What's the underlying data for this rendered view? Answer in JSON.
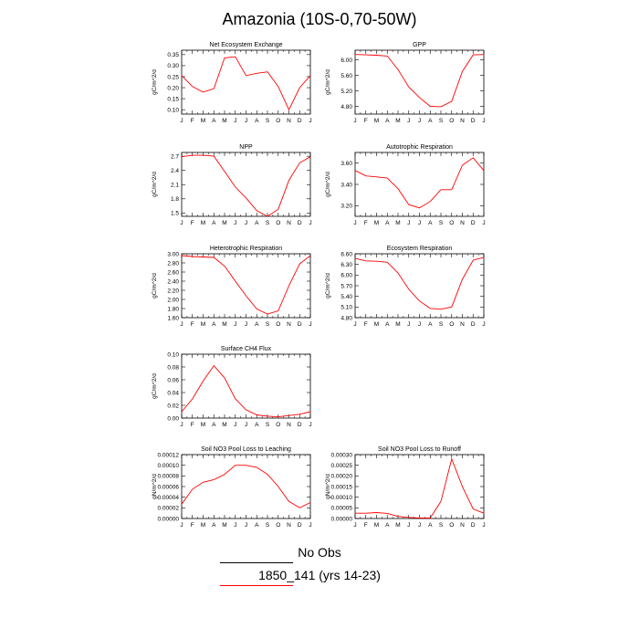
{
  "title": "Amazonia (10S-0,70-50W)",
  "footer": {
    "no_obs": "No Obs",
    "case_label": "1850_141 (yrs 14-23)",
    "line_color": "#ff0000"
  },
  "colors": {
    "series": "#ff0000",
    "axis": "#000000"
  },
  "chart_data": [
    {
      "type": "line",
      "title": "Net Ecosystem Exchange",
      "ylabel": "gC/m^2/d",
      "categories": [
        "J",
        "F",
        "M",
        "A",
        "M",
        "J",
        "J",
        "A",
        "S",
        "O",
        "N",
        "D",
        "J"
      ],
      "ylim": [
        0.08,
        0.37
      ],
      "yticks": [
        0.1,
        0.15,
        0.2,
        0.25,
        0.3,
        0.35
      ],
      "ytick_decimals": 2,
      "values": [
        0.255,
        0.205,
        0.18,
        0.195,
        0.335,
        0.34,
        0.255,
        0.265,
        0.272,
        0.205,
        0.1,
        0.2,
        0.255
      ]
    },
    {
      "type": "line",
      "title": "GPP",
      "ylabel": "gC/m^2/d",
      "categories": [
        "J",
        "F",
        "M",
        "A",
        "M",
        "J",
        "J",
        "A",
        "S",
        "O",
        "N",
        "D",
        "J"
      ],
      "ylim": [
        4.6,
        6.25
      ],
      "yticks": [
        4.8,
        5.2,
        5.6,
        6.0
      ],
      "ytick_decimals": 2,
      "values": [
        6.14,
        6.13,
        6.12,
        6.1,
        5.75,
        5.3,
        5.03,
        4.8,
        4.79,
        4.93,
        5.7,
        6.13,
        6.14
      ]
    },
    {
      "type": "line",
      "title": "NPP",
      "ylabel": "gC/m^2/d",
      "categories": [
        "J",
        "F",
        "M",
        "A",
        "M",
        "J",
        "J",
        "A",
        "S",
        "O",
        "N",
        "D",
        "J"
      ],
      "ylim": [
        1.43,
        2.78
      ],
      "yticks": [
        1.5,
        1.8,
        2.1,
        2.4,
        2.7
      ],
      "ytick_decimals": 1,
      "values": [
        2.69,
        2.72,
        2.72,
        2.7,
        2.38,
        2.05,
        1.82,
        1.55,
        1.43,
        1.58,
        2.19,
        2.56,
        2.69
      ]
    },
    {
      "type": "line",
      "title": "Autotrophic Respiration",
      "ylabel": "gC/m^2/d",
      "categories": [
        "J",
        "F",
        "M",
        "A",
        "M",
        "J",
        "J",
        "A",
        "S",
        "O",
        "N",
        "D",
        "J"
      ],
      "ylim": [
        3.1,
        3.7
      ],
      "yticks": [
        3.2,
        3.4,
        3.6
      ],
      "ytick_decimals": 2,
      "values": [
        3.53,
        3.48,
        3.47,
        3.46,
        3.36,
        3.21,
        3.18,
        3.24,
        3.35,
        3.35,
        3.58,
        3.65,
        3.53
      ]
    },
    {
      "type": "line",
      "title": "Heterotrophic Respiration",
      "ylabel": "gC/m^2/d",
      "categories": [
        "J",
        "F",
        "M",
        "A",
        "M",
        "J",
        "J",
        "A",
        "S",
        "O",
        "N",
        "D",
        "J"
      ],
      "ylim": [
        1.6,
        3.0
      ],
      "yticks": [
        1.6,
        1.8,
        2.0,
        2.2,
        2.4,
        2.6,
        2.8,
        3.0
      ],
      "ytick_decimals": 2,
      "values": [
        2.96,
        2.94,
        2.93,
        2.92,
        2.73,
        2.4,
        2.08,
        1.79,
        1.68,
        1.75,
        2.3,
        2.78,
        2.96
      ]
    },
    {
      "type": "line",
      "title": "Ecosystem Respiration",
      "ylabel": "gC/m^2/d",
      "categories": [
        "J",
        "F",
        "M",
        "A",
        "M",
        "J",
        "J",
        "A",
        "S",
        "O",
        "N",
        "D",
        "J"
      ],
      "ylim": [
        4.8,
        6.6
      ],
      "yticks": [
        4.8,
        5.1,
        5.4,
        5.7,
        6.0,
        6.3,
        6.6
      ],
      "ytick_decimals": 2,
      "values": [
        6.47,
        6.4,
        6.39,
        6.36,
        6.06,
        5.6,
        5.27,
        5.06,
        5.04,
        5.1,
        5.88,
        6.42,
        6.5
      ]
    },
    {
      "type": "line",
      "title": "Surface CH4 Flux",
      "ylabel": "gC/m^2/d",
      "categories": [
        "J",
        "F",
        "M",
        "A",
        "M",
        "J",
        "J",
        "A",
        "S",
        "O",
        "N",
        "D",
        "J"
      ],
      "ylim": [
        0.0,
        0.1
      ],
      "yticks": [
        0.0,
        0.02,
        0.04,
        0.06,
        0.08,
        0.1
      ],
      "ytick_decimals": 2,
      "values": [
        0.01,
        0.03,
        0.058,
        0.082,
        0.063,
        0.03,
        0.013,
        0.005,
        0.003,
        0.002,
        0.004,
        0.006,
        0.01
      ]
    },
    {
      "type": "line",
      "title": "Soil NO3 Pool Loss to Leaching",
      "ylabel": "gN/m^2/d",
      "categories": [
        "J",
        "F",
        "M",
        "A",
        "M",
        "J",
        "J",
        "A",
        "S",
        "O",
        "N",
        "D",
        "J"
      ],
      "ylim": [
        0.0,
        0.00012
      ],
      "yticks": [
        0.0,
        2e-05,
        4e-05,
        6e-05,
        8e-05,
        0.0001,
        0.00012
      ],
      "ytick_decimals": 5,
      "values": [
        2.7e-05,
        5.5e-05,
        6.8e-05,
        7.3e-05,
        8.3e-05,
        0.0001,
        0.0001,
        9.6e-05,
        8.3e-05,
        6e-05,
        3.2e-05,
        2e-05,
        3e-05
      ]
    },
    {
      "type": "line",
      "title": "Soil NO3 Pool Loss to Runoff",
      "ylabel": "gN/m^2/d",
      "categories": [
        "J",
        "F",
        "M",
        "A",
        "M",
        "J",
        "J",
        "A",
        "S",
        "O",
        "N",
        "D",
        "J"
      ],
      "ylim": [
        0.0,
        0.0003
      ],
      "yticks": [
        0.0,
        5e-05,
        0.0001,
        0.00015,
        0.0002,
        0.00025,
        0.0003
      ],
      "ytick_decimals": 5,
      "values": [
        2.5e-05,
        2.5e-05,
        2.8e-05,
        2.4e-05,
        1e-05,
        5e-06,
        2e-06,
        2e-06,
        8e-05,
        0.00028,
        0.00015,
        4.5e-05,
        2.5e-05
      ]
    }
  ]
}
